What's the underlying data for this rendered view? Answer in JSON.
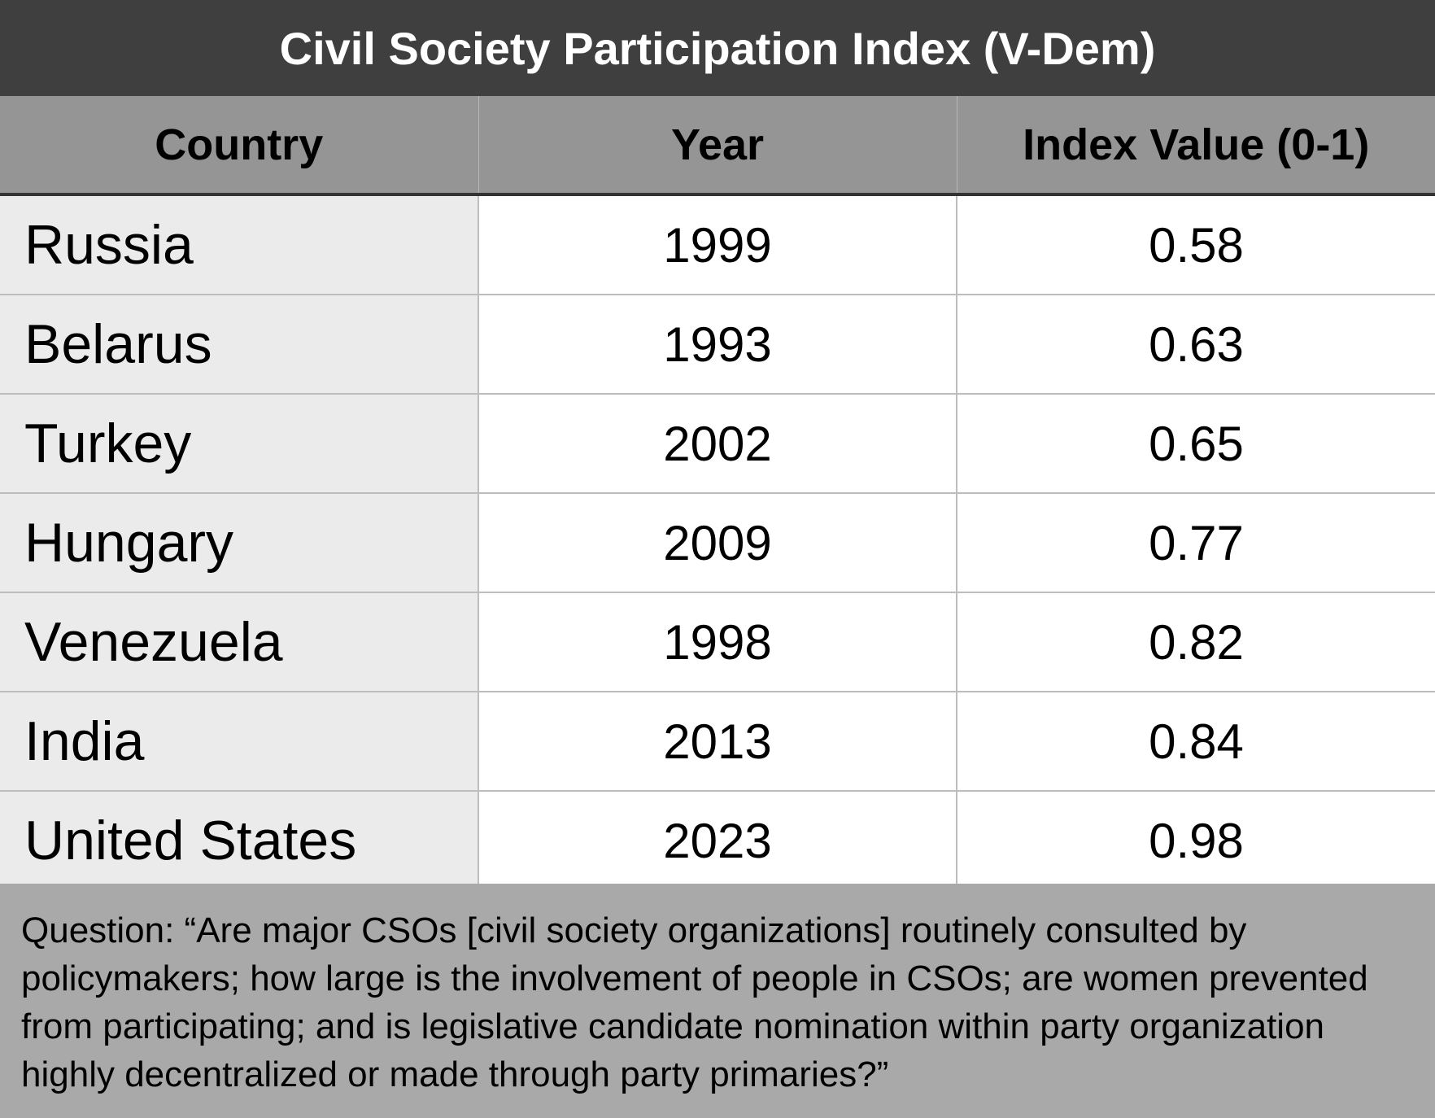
{
  "chart_data": {
    "type": "table",
    "title": "Civil Society Participation Index (V-Dem)",
    "columns": [
      "Country",
      "Year",
      "Index Value (0-1)"
    ],
    "rows": [
      {
        "country": "Russia",
        "year": "1999",
        "value": "0.58"
      },
      {
        "country": "Belarus",
        "year": "1993",
        "value": "0.63"
      },
      {
        "country": "Turkey",
        "year": "2002",
        "value": "0.65"
      },
      {
        "country": "Hungary",
        "year": "2009",
        "value": "0.77"
      },
      {
        "country": "Venezuela",
        "year": "1998",
        "value": "0.82"
      },
      {
        "country": "India",
        "year": "2013",
        "value": "0.84"
      },
      {
        "country": "United States",
        "year": "2023",
        "value": "0.98"
      }
    ],
    "footnote": "Question: “Are major CSOs [civil society organizations] routinely consulted by policymakers; how large is the involvement of people in CSOs; are women prevented from participating; and is legislative candidate nomination within party organization highly decentralized or made through party primaries?”"
  },
  "colors": {
    "title_background": "#3f3f3f",
    "header_background": "#959595",
    "country_cell_background": "#ebebeb",
    "footer_background": "#a9a9a9"
  }
}
